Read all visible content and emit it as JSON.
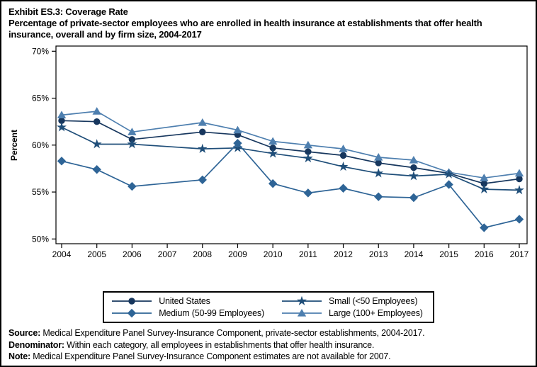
{
  "title": {
    "line1": "Exhibit ES.3: Coverage Rate",
    "line2": "Percentage of private-sector employees who are enrolled in health insurance at establishments that offer health insurance, overall and by firm size, 2004-2017"
  },
  "chart_data": {
    "type": "line",
    "title": "Exhibit ES.3: Coverage Rate",
    "subtitle": "Percentage of private-sector employees who are enrolled in health insurance at establishments that offer health insurance, overall and by firm size, 2004-2017",
    "ylabel": "Percent",
    "xlabel": "",
    "x": [
      2004,
      2005,
      2006,
      2007,
      2008,
      2009,
      2010,
      2011,
      2012,
      2013,
      2014,
      2015,
      2016,
      2017
    ],
    "x_tick_labels": [
      "2004",
      "2005",
      "2006",
      "2007",
      "2008",
      "2009",
      "2010",
      "2011",
      "2012",
      "2013",
      "2014",
      "2015",
      "2016",
      "2017"
    ],
    "ylim": [
      50,
      70
    ],
    "yticks": [
      70,
      65,
      60,
      55,
      50
    ],
    "ytick_labels": [
      "70%",
      "65%",
      "60%",
      "55%",
      "50%"
    ],
    "grid": false,
    "legend_position": "bottom",
    "missing_years": [
      2007
    ],
    "series": [
      {
        "name": "United States",
        "marker": "circle",
        "color": "#17375E",
        "values": [
          62.6,
          62.5,
          60.6,
          null,
          61.4,
          61.1,
          59.7,
          59.3,
          58.9,
          58.1,
          57.6,
          57.0,
          55.9,
          56.4
        ]
      },
      {
        "name": "Small (<50 Employees)",
        "marker": "star",
        "color": "#1F4E79",
        "values": [
          61.9,
          60.1,
          60.1,
          null,
          59.6,
          59.7,
          59.1,
          58.6,
          57.7,
          57.0,
          56.7,
          56.9,
          55.3,
          55.2
        ]
      },
      {
        "name": "Medium (50-99 Employees)",
        "marker": "diamond",
        "color": "#2E6496",
        "values": [
          58.3,
          57.4,
          55.6,
          null,
          56.3,
          60.2,
          55.9,
          54.9,
          55.4,
          54.5,
          54.4,
          55.8,
          51.2,
          52.1
        ]
      },
      {
        "name": "Large (100+ Employees)",
        "marker": "triangle",
        "color": "#4E7FAF",
        "values": [
          63.2,
          63.6,
          61.4,
          null,
          62.4,
          61.6,
          60.4,
          60.0,
          59.6,
          58.7,
          58.4,
          57.1,
          56.5,
          57.0
        ]
      }
    ]
  },
  "legend": {
    "items": [
      {
        "label": "United States"
      },
      {
        "label": "Small (<50 Employees)"
      },
      {
        "label": "Medium (50-99 Employees)"
      },
      {
        "label": "Large (100+ Employees)"
      }
    ]
  },
  "footer": {
    "lines": [
      {
        "label": "Source:",
        "text": " Medical Expenditure Panel Survey-Insurance Component, private-sector establishments, 2004-2017."
      },
      {
        "label": "Denominator:",
        "text": " Within each category, all employees in establishments that offer health insurance."
      },
      {
        "label": "Note:",
        "text": " Medical Expenditure Panel Survey-Insurance Component estimates are not available for 2007."
      }
    ]
  }
}
